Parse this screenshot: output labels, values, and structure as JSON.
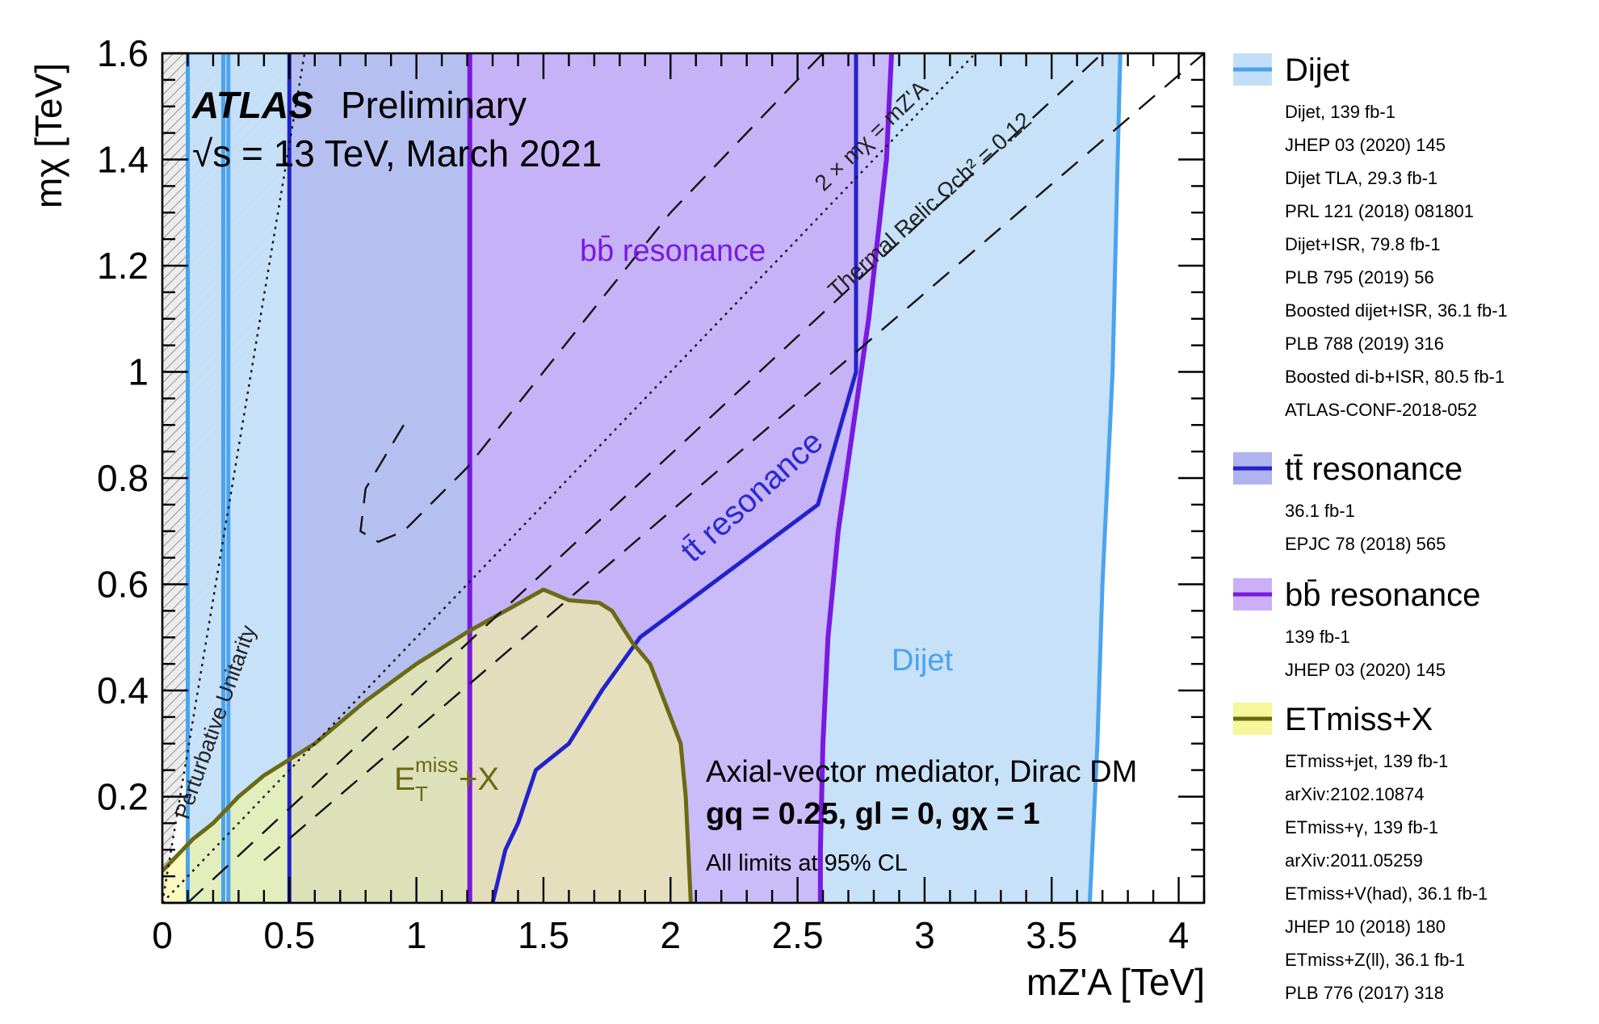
{
  "figure": {
    "atlas": "ATLAS",
    "preliminary": "Preliminary",
    "energy": "√s = 13 TeV, March 2021",
    "model": "Axial-vector mediator, Dirac DM",
    "couplings": "gq = 0.25, gl = 0, gχ = 1",
    "cl": "All limits at 95% CL"
  },
  "chart_data": {
    "type": "area",
    "xlabel": "mZ'A [TeV]",
    "ylabel": "mχ [TeV]",
    "xlim": [
      0,
      4.1
    ],
    "ylim": [
      0,
      1.6
    ],
    "x_ticks": [
      "0",
      "0.5",
      "1",
      "1.5",
      "2",
      "2.5",
      "3",
      "3.5",
      "4"
    ],
    "y_ticks": [
      "0.2",
      "0.4",
      "0.6",
      "0.8",
      "1",
      "1.2",
      "1.4",
      "1.6"
    ],
    "colors": {
      "dijet_fill": "#c3dff8",
      "dijet_line": "#4ca3ee",
      "ttbar_fill": "#afb4ee",
      "ttbar_line": "#2222cc",
      "bbbar_fill": "#cbb0f8",
      "bbbar_line": "#7a19e0",
      "met_fill": "#f6f69a",
      "met_line": "#6b6a14"
    },
    "regions": [
      {
        "name": "Dijet",
        "label": "Dijet",
        "polygon": [
          [
            0.1,
            0
          ],
          [
            0.1,
            1.6
          ],
          [
            3.77,
            1.6
          ],
          [
            3.76,
            1.4
          ],
          [
            3.74,
            1.0
          ],
          [
            3.7,
            0.6
          ],
          [
            3.68,
            0.3
          ],
          [
            3.66,
            0.1
          ],
          [
            3.65,
            0
          ]
        ]
      },
      {
        "name": "tt̄ resonance",
        "label": "tt̄ resonance",
        "polygon": [
          [
            0.5,
            0
          ],
          [
            0.5,
            1.6
          ],
          [
            2.73,
            1.6
          ],
          [
            2.73,
            1.0
          ],
          [
            2.58,
            0.75
          ],
          [
            1.88,
            0.5
          ],
          [
            1.73,
            0.4
          ],
          [
            1.6,
            0.3
          ],
          [
            1.47,
            0.25
          ],
          [
            1.4,
            0.15
          ],
          [
            1.35,
            0.1
          ],
          [
            1.3,
            0
          ]
        ]
      },
      {
        "name": "bb̄ resonance",
        "label": "bb̄ resonance",
        "polygon": [
          [
            1.21,
            0
          ],
          [
            1.21,
            1.6
          ],
          [
            2.87,
            1.6
          ],
          [
            2.85,
            1.4
          ],
          [
            2.78,
            1.1
          ],
          [
            2.72,
            0.9
          ],
          [
            2.66,
            0.7
          ],
          [
            2.62,
            0.5
          ],
          [
            2.6,
            0.3
          ],
          [
            2.59,
            0.1
          ],
          [
            2.59,
            0
          ]
        ]
      },
      {
        "name": "ETmiss+X",
        "label_main": "E",
        "label_sub": "T",
        "label_sup": "miss",
        "label_tail": "+X",
        "polygon": [
          [
            0,
            0
          ],
          [
            0,
            0.06
          ],
          [
            0.04,
            0.08
          ],
          [
            0.08,
            0.1
          ],
          [
            0.12,
            0.12
          ],
          [
            0.2,
            0.15
          ],
          [
            0.3,
            0.2
          ],
          [
            0.4,
            0.24
          ],
          [
            0.6,
            0.3
          ],
          [
            0.8,
            0.38
          ],
          [
            1.0,
            0.45
          ],
          [
            1.2,
            0.51
          ],
          [
            1.35,
            0.55
          ],
          [
            1.5,
            0.59
          ],
          [
            1.6,
            0.57
          ],
          [
            1.72,
            0.565
          ],
          [
            1.77,
            0.55
          ],
          [
            1.85,
            0.49
          ],
          [
            1.92,
            0.45
          ],
          [
            2.0,
            0.35
          ],
          [
            2.04,
            0.3
          ],
          [
            2.06,
            0.2
          ],
          [
            2.07,
            0.1
          ],
          [
            2.08,
            0
          ]
        ]
      }
    ],
    "lines": [
      {
        "name": "Perturbative Unitarity",
        "points": [
          [
            0,
            0
          ],
          [
            0.56,
            1.6
          ]
        ]
      },
      {
        "name": "2 × mχ = mZ'A",
        "points": [
          [
            0,
            0
          ],
          [
            3.2,
            1.6
          ]
        ]
      },
      {
        "name": "Thermal Relic Ωch² = 0.12",
        "points": [
          [
            0.1,
            0
          ],
          [
            3.7,
            1.6
          ]
        ]
      },
      {
        "name": "relic lower branch",
        "points": [
          [
            0.4,
            0.08
          ],
          [
            4.1,
            1.6
          ]
        ]
      },
      {
        "name": "relic island",
        "points": [
          [
            0.95,
            0.9
          ],
          [
            0.8,
            0.78
          ],
          [
            0.78,
            0.7
          ],
          [
            0.85,
            0.68
          ],
          [
            0.95,
            0.7
          ],
          [
            1.2,
            0.82
          ],
          [
            1.5,
            1.0
          ],
          [
            2.0,
            1.3
          ],
          [
            2.6,
            1.6
          ]
        ]
      }
    ],
    "annotations": [
      {
        "text": "Perturbative Unitarity"
      },
      {
        "text": "2 × mχ = mZ'A"
      },
      {
        "text": "Thermal Relic Ωch² = 0.12"
      },
      {
        "text": "tt̄ resonance"
      },
      {
        "text": "bb̄ resonance"
      },
      {
        "text": "Dijet"
      }
    ],
    "legend": {
      "placement": "right",
      "entries": [
        {
          "title": "Dijet",
          "lines": [
            "Dijet, 139 fb-1",
            "JHEP 03 (2020) 145",
            "Dijet TLA, 29.3 fb-1",
            "PRL 121 (2018) 081801",
            "Dijet+ISR, 79.8 fb-1",
            "PLB 795 (2019) 56",
            "Boosted dijet+ISR, 36.1 fb-1",
            "PLB 788 (2019) 316",
            "Boosted di-b+ISR, 80.5 fb-1",
            "ATLAS-CONF-2018-052"
          ]
        },
        {
          "title": "tt̄ resonance",
          "lines": [
            "36.1 fb-1",
            "EPJC 78 (2018) 565"
          ]
        },
        {
          "title": "bb̄ resonance",
          "lines": [
            "139 fb-1",
            "JHEP 03 (2020) 145"
          ]
        },
        {
          "title": "ETmiss+X",
          "lines": [
            "ETmiss+jet, 139 fb-1",
            "arXiv:2102.10874",
            "ETmiss+γ, 139 fb-1",
            "arXiv:2011.05259",
            "ETmiss+V(had), 36.1 fb-1",
            "JHEP 10 (2018) 180",
            "ETmiss+Z(ll), 36.1 fb-1",
            "PLB 776 (2017) 318"
          ]
        }
      ]
    }
  }
}
